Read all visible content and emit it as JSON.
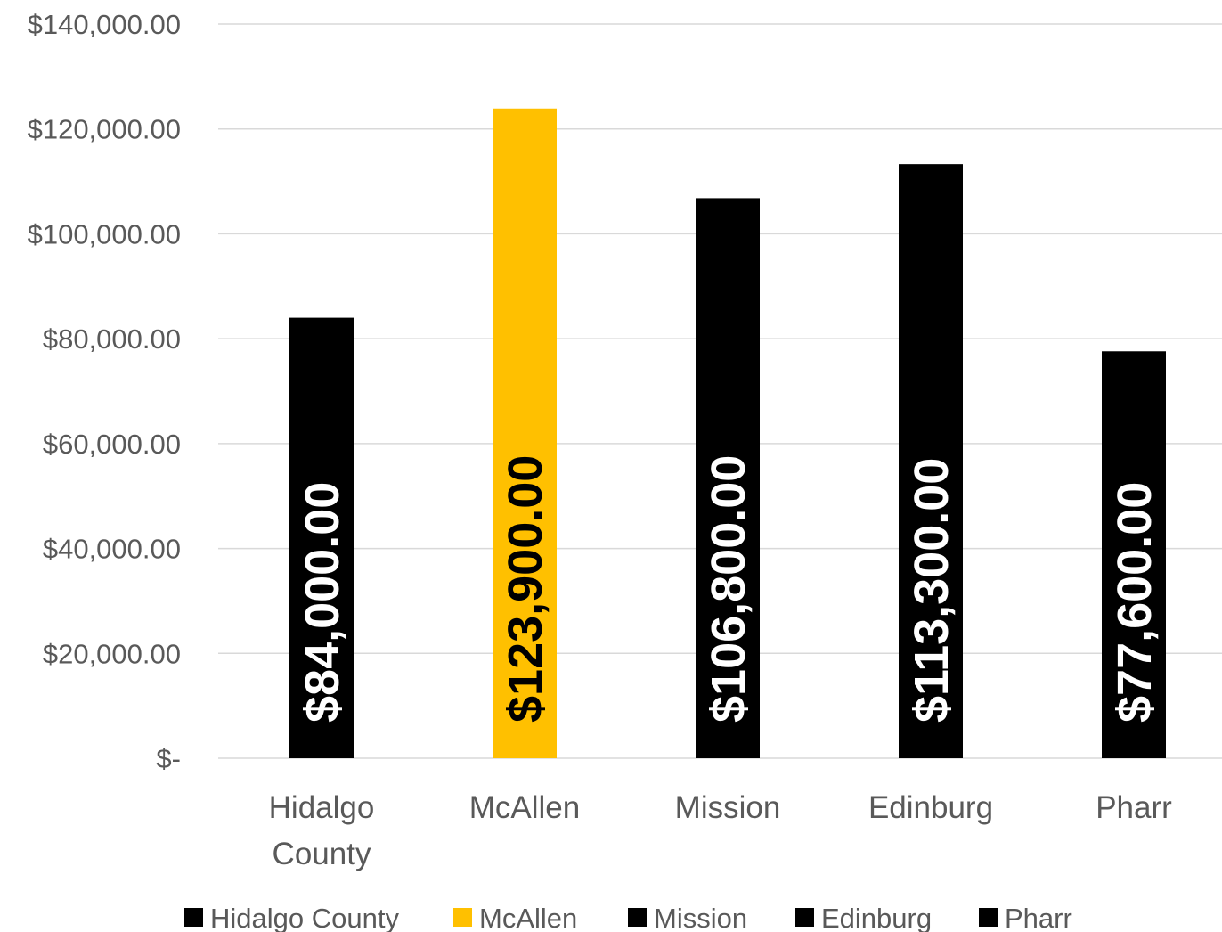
{
  "chart_data": {
    "type": "bar",
    "categories": [
      "Hidalgo County",
      "McAllen",
      "Mission",
      "Edinburg",
      "Pharr"
    ],
    "category_lines": [
      [
        "Hidalgo",
        "County"
      ],
      [
        "McAllen"
      ],
      [
        "Mission"
      ],
      [
        "Edinburg"
      ],
      [
        "Pharr"
      ]
    ],
    "values": [
      84000,
      123900,
      106800,
      113300,
      77600
    ],
    "data_labels": [
      "$84,000.00",
      "$123,900.00",
      "$106,800.00",
      "$113,300.00",
      "$77,600.00"
    ],
    "colors": [
      "#000000",
      "#FFC000",
      "#000000",
      "#000000",
      "#000000"
    ],
    "data_label_colors": [
      "#FFFFFF",
      "#000000",
      "#FFFFFF",
      "#FFFFFF",
      "#FFFFFF"
    ],
    "ylim": [
      0,
      140000
    ],
    "y_ticks": [
      0,
      20000,
      40000,
      60000,
      80000,
      100000,
      120000,
      140000
    ],
    "y_tick_labels": [
      "$-",
      "$20,000.00",
      "$40,000.00",
      "$60,000.00",
      "$80,000.00",
      "$100,000.00",
      "$120,000.00",
      "$140,000.00"
    ],
    "title": "",
    "xlabel": "",
    "ylabel": "",
    "grid": true,
    "legend_position": "bottom",
    "legend": [
      "Hidalgo County",
      "McAllen",
      "Mission",
      "Edinburg",
      "Pharr"
    ]
  }
}
